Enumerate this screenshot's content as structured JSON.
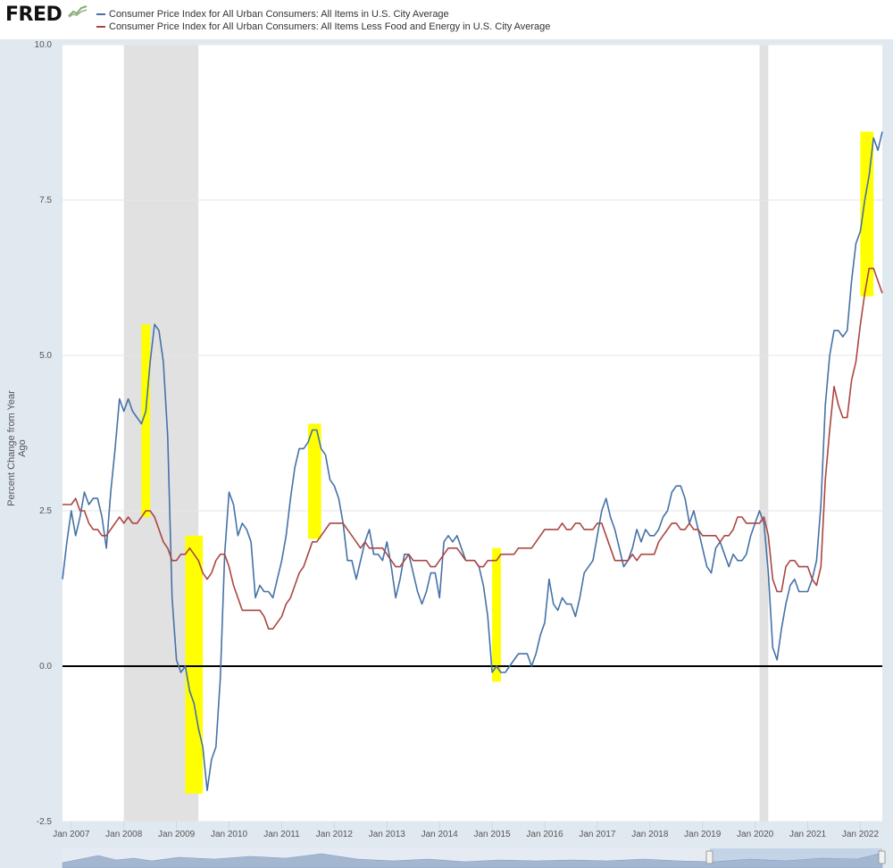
{
  "header": {
    "logo_text": "FRED"
  },
  "colors": {
    "series_all_items": "#4572a7",
    "series_core": "#aa4643",
    "highlight": "#ffff00",
    "recession": "#e1e1e1",
    "plot_bg": "#ffffff",
    "page_bg": "#e1e9f0"
  },
  "chart_data": {
    "type": "line",
    "ylabel": "Percent Change from Year Ago",
    "ylim": [
      -2.5,
      10.0
    ],
    "xlim": [
      "2006-11",
      "2022-06"
    ],
    "y_ticks": [
      -2.5,
      0.0,
      2.5,
      5.0,
      7.5,
      10.0
    ],
    "y_tick_labels": [
      "-2.5",
      "0.0",
      "2.5",
      "5.0",
      "7.5",
      "10.0"
    ],
    "x_ticks": [
      "2007-01",
      "2008-01",
      "2009-01",
      "2010-01",
      "2011-01",
      "2012-01",
      "2013-01",
      "2014-01",
      "2015-01",
      "2016-01",
      "2017-01",
      "2018-01",
      "2019-01",
      "2020-01",
      "2021-01",
      "2022-01"
    ],
    "x_tick_labels": [
      "Jan 2007",
      "Jan 2008",
      "Jan 2009",
      "Jan 2010",
      "Jan 2011",
      "Jan 2012",
      "Jan 2013",
      "Jan 2014",
      "Jan 2015",
      "Jan 2016",
      "Jan 2017",
      "Jan 2018",
      "Jan 2019",
      "Jan 2020",
      "Jan 2021",
      "Jan 2022"
    ],
    "grid": "horizontal",
    "legend_position": "top",
    "recessions": [
      {
        "start": "2008-01",
        "end": "2009-06"
      },
      {
        "start": "2020-02",
        "end": "2020-04"
      }
    ],
    "highlights": [
      {
        "start": "2008-05",
        "end": "2008-07",
        "ymin": 2.4,
        "ymax": 5.5
      },
      {
        "start": "2009-03",
        "end": "2009-07",
        "ymin": -2.05,
        "ymax": 2.1
      },
      {
        "start": "2011-07",
        "end": "2011-10",
        "ymin": 2.05,
        "ymax": 3.9
      },
      {
        "start": "2015-01",
        "end": "2015-03",
        "ymin": -0.25,
        "ymax": 1.9
      },
      {
        "start": "2022-01",
        "end": "2022-04",
        "ymin": 5.95,
        "ymax": 8.6
      }
    ],
    "zero_line": 0.0,
    "series": [
      {
        "name": "Consumer Price Index for All Urban Consumers: All Items in U.S. City Average",
        "start": "2006-11",
        "values": [
          1.4,
          2.0,
          2.5,
          2.1,
          2.4,
          2.8,
          2.6,
          2.7,
          2.7,
          2.4,
          1.9,
          2.8,
          3.5,
          4.3,
          4.1,
          4.3,
          4.1,
          4.0,
          3.9,
          4.1,
          4.9,
          5.5,
          5.4,
          4.9,
          3.7,
          1.1,
          0.1,
          -0.1,
          0.0,
          -0.4,
          -0.6,
          -1.0,
          -1.3,
          -2.0,
          -1.5,
          -1.3,
          -0.2,
          1.8,
          2.8,
          2.6,
          2.1,
          2.3,
          2.2,
          2.0,
          1.1,
          1.3,
          1.2,
          1.2,
          1.1,
          1.4,
          1.7,
          2.1,
          2.7,
          3.2,
          3.5,
          3.5,
          3.6,
          3.8,
          3.8,
          3.5,
          3.4,
          3.0,
          2.9,
          2.7,
          2.3,
          1.7,
          1.7,
          1.4,
          1.7,
          2.0,
          2.2,
          1.8,
          1.8,
          1.7,
          2.0,
          1.6,
          1.1,
          1.4,
          1.8,
          1.8,
          1.5,
          1.2,
          1.0,
          1.2,
          1.5,
          1.5,
          1.1,
          2.0,
          2.1,
          2.0,
          2.1,
          1.9,
          1.7,
          1.7,
          1.7,
          1.6,
          1.3,
          0.8,
          -0.1,
          0.0,
          -0.1,
          -0.1,
          0.0,
          0.1,
          0.2,
          0.2,
          0.2,
          0.0,
          0.2,
          0.5,
          0.7,
          1.4,
          1.0,
          0.9,
          1.1,
          1.0,
          1.0,
          0.8,
          1.1,
          1.5,
          1.6,
          1.7,
          2.1,
          2.5,
          2.7,
          2.4,
          2.2,
          1.9,
          1.6,
          1.7,
          1.9,
          2.2,
          2.0,
          2.2,
          2.1,
          2.1,
          2.2,
          2.4,
          2.5,
          2.8,
          2.9,
          2.9,
          2.7,
          2.3,
          2.5,
          2.2,
          1.9,
          1.6,
          1.5,
          1.9,
          2.0,
          1.8,
          1.6,
          1.8,
          1.7,
          1.7,
          1.8,
          2.1,
          2.3,
          2.5,
          2.3,
          1.5,
          0.3,
          0.1,
          0.6,
          1.0,
          1.3,
          1.4,
          1.2,
          1.2,
          1.2,
          1.4,
          1.7,
          2.6,
          4.2,
          5.0,
          5.4,
          5.4,
          5.3,
          5.4,
          6.2,
          6.8,
          7.0,
          7.5,
          7.9,
          8.5,
          8.3,
          8.6
        ]
      },
      {
        "name": "Consumer Price Index for All Urban Consumers: All Items Less Food and Energy in U.S. City Average",
        "start": "2006-11",
        "values": [
          2.6,
          2.6,
          2.6,
          2.7,
          2.5,
          2.5,
          2.3,
          2.2,
          2.2,
          2.1,
          2.1,
          2.2,
          2.3,
          2.4,
          2.3,
          2.4,
          2.3,
          2.3,
          2.4,
          2.5,
          2.5,
          2.4,
          2.2,
          2.0,
          1.9,
          1.7,
          1.7,
          1.8,
          1.8,
          1.9,
          1.8,
          1.7,
          1.5,
          1.4,
          1.5,
          1.7,
          1.8,
          1.8,
          1.6,
          1.3,
          1.1,
          0.9,
          0.9,
          0.9,
          0.9,
          0.9,
          0.8,
          0.6,
          0.6,
          0.7,
          0.8,
          1.0,
          1.1,
          1.3,
          1.5,
          1.6,
          1.8,
          2.0,
          2.0,
          2.1,
          2.2,
          2.3,
          2.3,
          2.3,
          2.3,
          2.2,
          2.1,
          2.0,
          1.9,
          2.0,
          1.9,
          1.9,
          1.9,
          1.9,
          1.8,
          1.7,
          1.6,
          1.6,
          1.7,
          1.8,
          1.7,
          1.7,
          1.7,
          1.7,
          1.6,
          1.6,
          1.7,
          1.8,
          1.9,
          1.9,
          1.9,
          1.8,
          1.7,
          1.7,
          1.7,
          1.6,
          1.6,
          1.7,
          1.7,
          1.7,
          1.8,
          1.8,
          1.8,
          1.8,
          1.9,
          1.9,
          1.9,
          1.9,
          2.0,
          2.1,
          2.2,
          2.2,
          2.2,
          2.2,
          2.3,
          2.2,
          2.2,
          2.3,
          2.3,
          2.2,
          2.2,
          2.2,
          2.3,
          2.3,
          2.1,
          1.9,
          1.7,
          1.7,
          1.7,
          1.7,
          1.8,
          1.7,
          1.8,
          1.8,
          1.8,
          1.8,
          2.0,
          2.1,
          2.2,
          2.3,
          2.3,
          2.2,
          2.2,
          2.3,
          2.2,
          2.2,
          2.1,
          2.1,
          2.1,
          2.1,
          2.0,
          2.1,
          2.1,
          2.2,
          2.4,
          2.4,
          2.3,
          2.3,
          2.3,
          2.3,
          2.4,
          2.1,
          1.4,
          1.2,
          1.2,
          1.6,
          1.7,
          1.7,
          1.6,
          1.6,
          1.6,
          1.4,
          1.3,
          1.6,
          3.0,
          3.8,
          4.5,
          4.2,
          4.0,
          4.0,
          4.6,
          4.9,
          5.5,
          6.0,
          6.4,
          6.4,
          6.2,
          6.0
        ]
      }
    ]
  }
}
